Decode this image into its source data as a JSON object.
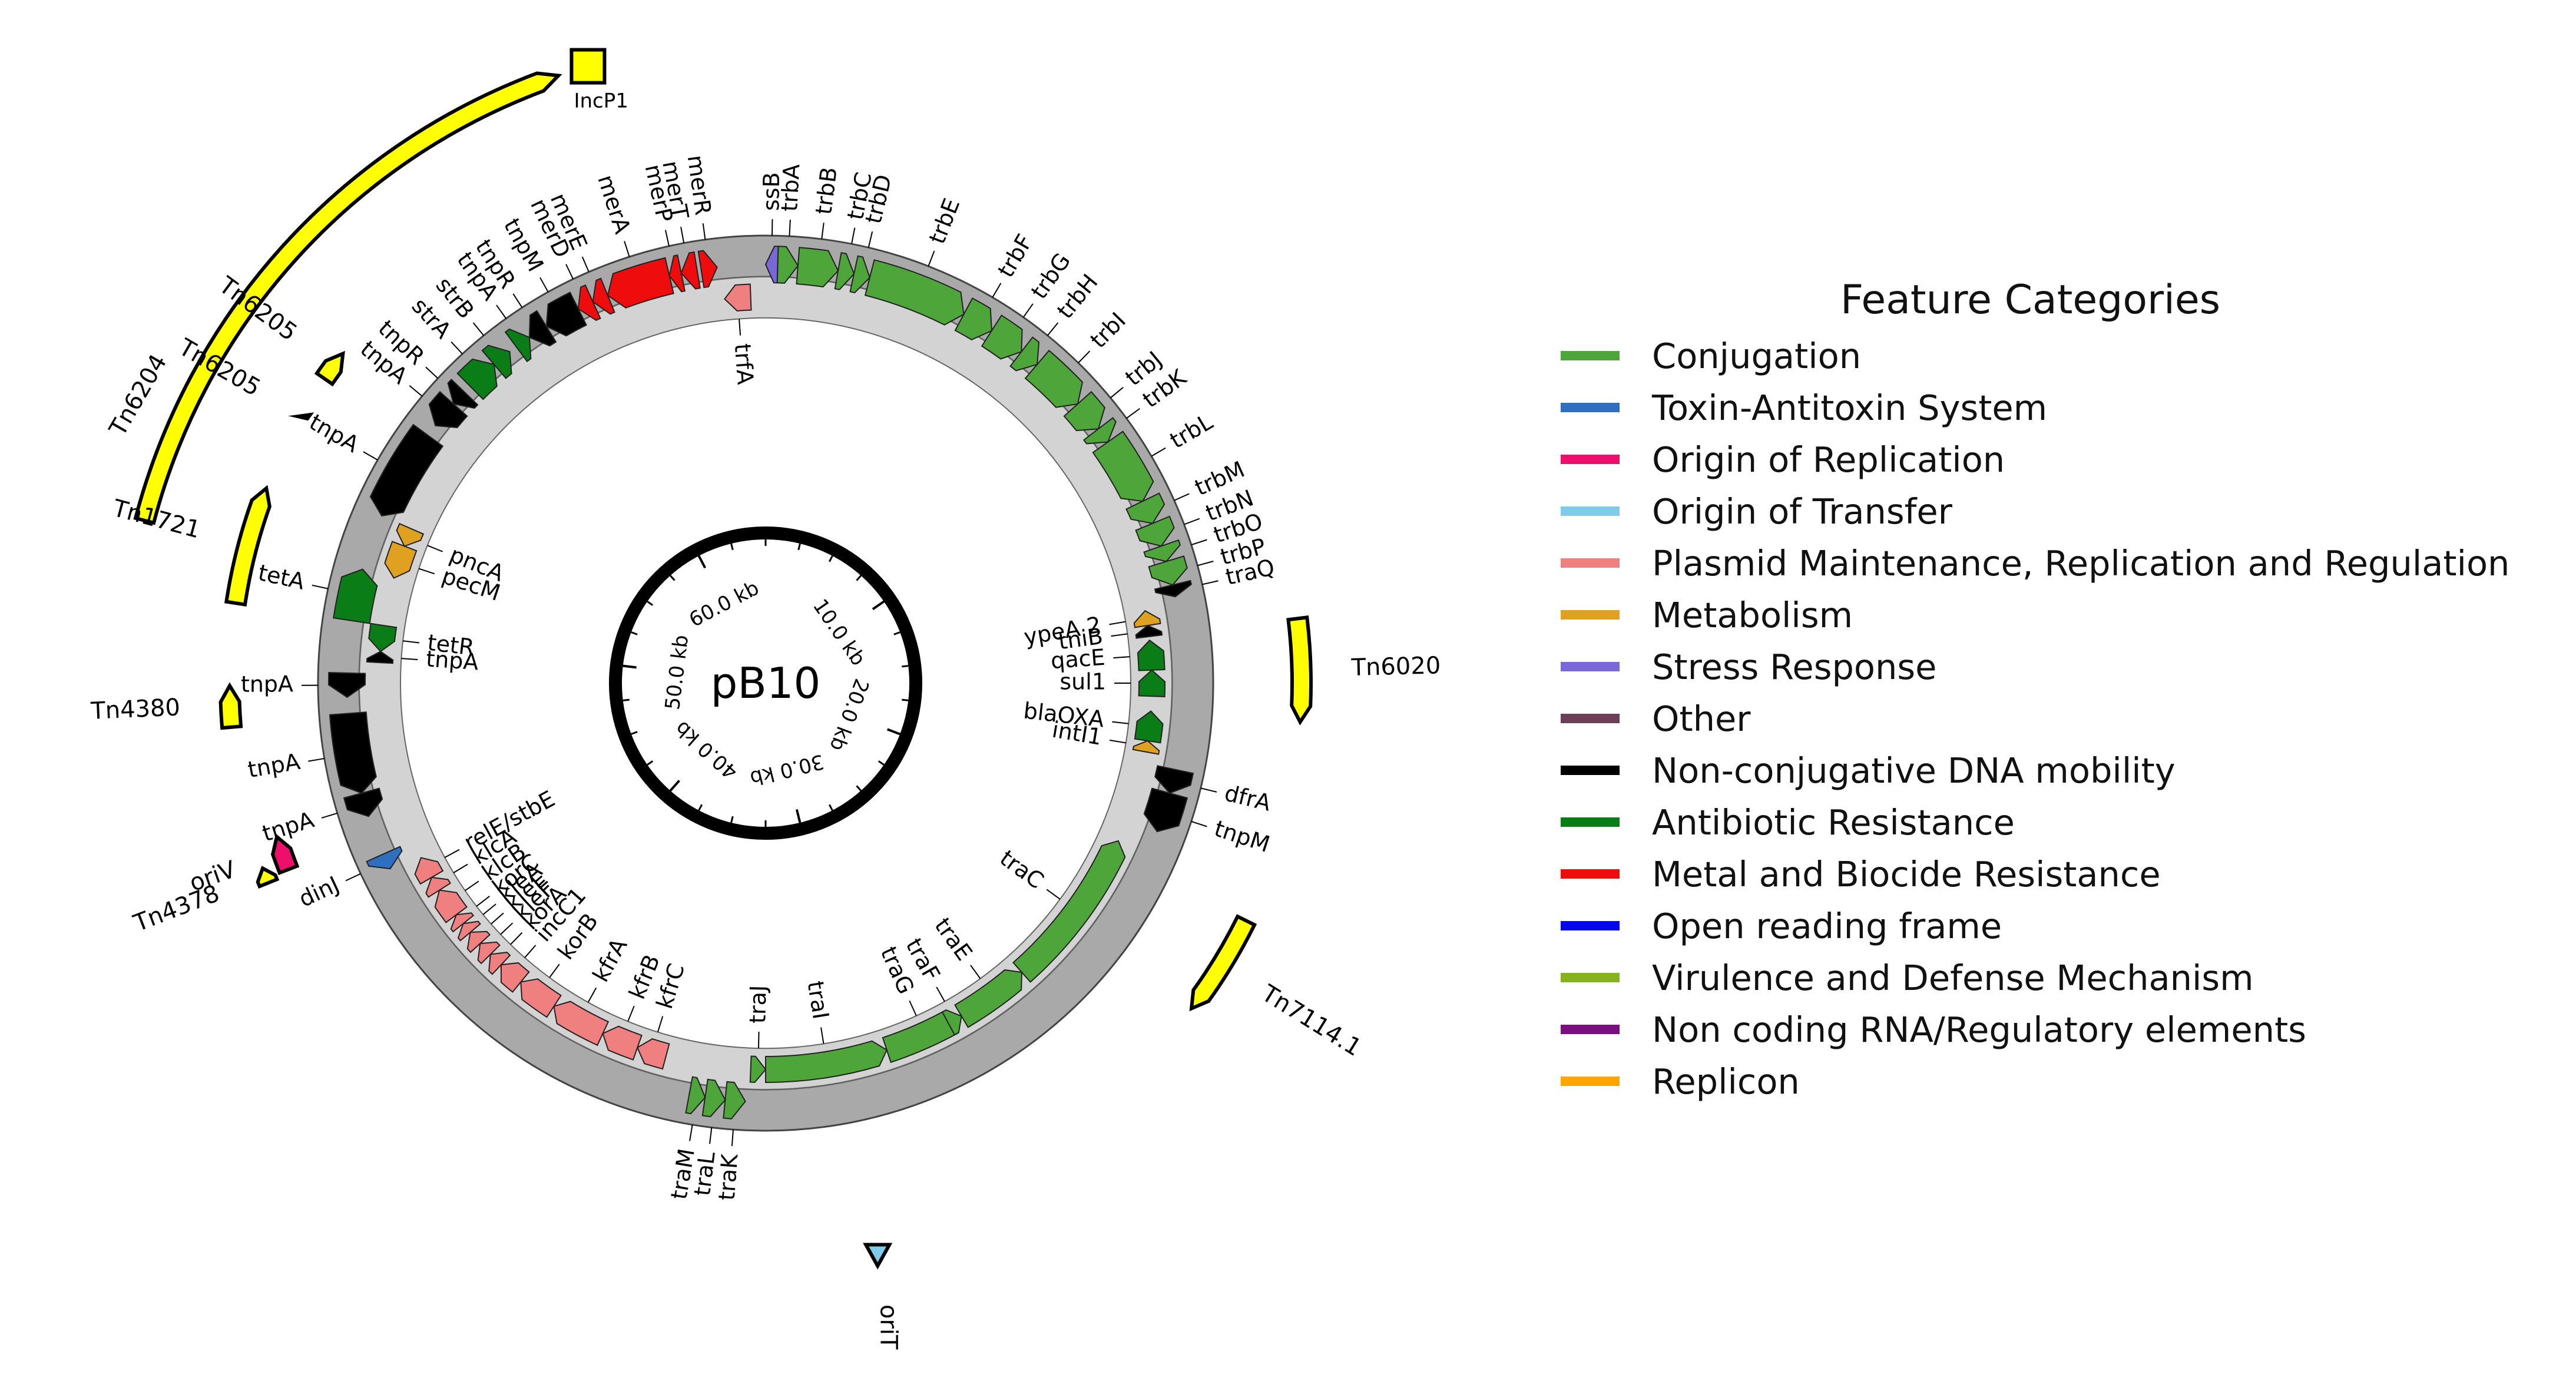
{
  "plasmid": {
    "name": "pB10",
    "scale_labels": [
      "10.0 kb",
      "20.0 kb",
      "30.0 kb",
      "40.0 kb",
      "50.0 kb",
      "60.0 kb"
    ]
  },
  "legend": {
    "title": "Feature Categories",
    "items": [
      {
        "label": "Conjugation",
        "color": "#4ea63b"
      },
      {
        "label": "Toxin-Antitoxin System",
        "color": "#2f6fbf"
      },
      {
        "label": "Origin of Replication",
        "color": "#ee0e6b"
      },
      {
        "label": "Origin of Transfer",
        "color": "#7ecbea"
      },
      {
        "label": "Plasmid Maintenance, Replication and Regulation",
        "color": "#f08080"
      },
      {
        "label": "Metabolism",
        "color": "#e0a020"
      },
      {
        "label": "Stress Response",
        "color": "#7b68d8"
      },
      {
        "label": "Other",
        "color": "#6b3f57"
      },
      {
        "label": "Non-conjugative DNA mobility",
        "color": "#000000"
      },
      {
        "label": "Antibiotic Resistance",
        "color": "#0a7d16"
      },
      {
        "label": "Metal and Biocide Resistance",
        "color": "#ee0c0c"
      },
      {
        "label": "Open reading frame",
        "color": "#0606ee"
      },
      {
        "label": "Virulence and Defense Mechanism",
        "color": "#84b31c"
      },
      {
        "label": "Non coding RNA/Regulatory elements",
        "color": "#7a0f7e"
      },
      {
        "label": "Replicon",
        "color": "#ffa500"
      }
    ]
  },
  "features": [
    {
      "name": "ssB",
      "start": 0.0,
      "end": 0.3,
      "strand": -1,
      "category": "Stress Response",
      "lane": "outer"
    },
    {
      "name": "trbA",
      "start": 0.3,
      "end": 0.8,
      "strand": 1,
      "category": "Conjugation",
      "lane": "outer"
    },
    {
      "name": "trbB",
      "start": 0.8,
      "end": 1.8,
      "strand": 1,
      "category": "Conjugation",
      "lane": "outer"
    },
    {
      "name": "trbC",
      "start": 1.8,
      "end": 2.2,
      "strand": 1,
      "category": "Conjugation",
      "lane": "outer"
    },
    {
      "name": "trbD",
      "start": 2.2,
      "end": 2.6,
      "strand": 1,
      "category": "Conjugation",
      "lane": "outer"
    },
    {
      "name": "trbE",
      "start": 2.6,
      "end": 5.1,
      "strand": 1,
      "category": "Conjugation",
      "lane": "outer"
    },
    {
      "name": "trbF",
      "start": 5.1,
      "end": 5.9,
      "strand": 1,
      "category": "Conjugation",
      "lane": "outer"
    },
    {
      "name": "trbG",
      "start": 5.9,
      "end": 6.8,
      "strand": 1,
      "category": "Conjugation",
      "lane": "outer"
    },
    {
      "name": "trbH",
      "start": 6.8,
      "end": 7.3,
      "strand": 1,
      "category": "Conjugation",
      "lane": "outer"
    },
    {
      "name": "trbI",
      "start": 7.3,
      "end": 8.7,
      "strand": 1,
      "category": "Conjugation",
      "lane": "outer"
    },
    {
      "name": "trbJ",
      "start": 8.7,
      "end": 9.5,
      "strand": 1,
      "category": "Conjugation",
      "lane": "outer"
    },
    {
      "name": "trbK",
      "start": 9.5,
      "end": 9.9,
      "strand": 1,
      "category": "Conjugation",
      "lane": "outer"
    },
    {
      "name": "trbL",
      "start": 9.9,
      "end": 11.6,
      "strand": 1,
      "category": "Conjugation",
      "lane": "outer"
    },
    {
      "name": "trbM",
      "start": 11.6,
      "end": 12.2,
      "strand": 1,
      "category": "Conjugation",
      "lane": "outer"
    },
    {
      "name": "trbN",
      "start": 12.2,
      "end": 12.8,
      "strand": 1,
      "category": "Conjugation",
      "lane": "outer"
    },
    {
      "name": "trbO",
      "start": 12.8,
      "end": 13.2,
      "strand": 1,
      "category": "Conjugation",
      "lane": "outer"
    },
    {
      "name": "trbP",
      "start": 13.2,
      "end": 13.8,
      "strand": 1,
      "category": "Conjugation",
      "lane": "outer"
    },
    {
      "name": "traQ",
      "start": 13.8,
      "end": 14.1,
      "strand": 1,
      "category": "Non-conjugative DNA mobility",
      "lane": "outer"
    },
    {
      "name": "ypeA 2",
      "start": 14.3,
      "end": 14.7,
      "strand": -1,
      "category": "Metabolism",
      "lane": "inner"
    },
    {
      "name": "tniB",
      "start": 14.7,
      "end": 15.0,
      "strand": -1,
      "category": "Non-conjugative DNA mobility",
      "lane": "inner"
    },
    {
      "name": "qacE",
      "start": 15.1,
      "end": 15.9,
      "strand": -1,
      "category": "Antibiotic Resistance",
      "lane": "inner"
    },
    {
      "name": "sul1",
      "start": 15.9,
      "end": 16.6,
      "strand": -1,
      "category": "Antibiotic Resistance",
      "lane": "inner"
    },
    {
      "name": "blaOXA",
      "start": 17.0,
      "end": 17.8,
      "strand": -1,
      "category": "Antibiotic Resistance",
      "lane": "inner"
    },
    {
      "name": "intI1",
      "start": 17.8,
      "end": 18.1,
      "strand": -1,
      "category": "Metabolism",
      "lane": "inner"
    },
    {
      "name": "dfrA",
      "start": 18.4,
      "end": 19.0,
      "strand": 1,
      "category": "Non-conjugative DNA mobility",
      "lane": "outer"
    },
    {
      "name": "tnpM",
      "start": 19.0,
      "end": 20.0,
      "strand": 1,
      "category": "Non-conjugative DNA mobility",
      "lane": "outer"
    },
    {
      "name": "traC",
      "start": 20.6,
      "end": 25.0,
      "strand": -1,
      "category": "Conjugation",
      "lane": "inner"
    },
    {
      "name": "traE",
      "start": 25.0,
      "end": 27.0,
      "strand": -1,
      "category": "Conjugation",
      "lane": "inner"
    },
    {
      "name": "traG",
      "start": 27.0,
      "end": 29.2,
      "strand": -1,
      "category": "Conjugation",
      "lane": "inner"
    },
    {
      "name": "traF",
      "start": 27.0,
      "end": 27.4,
      "strand": -1,
      "category": "Conjugation",
      "lane": "inner"
    },
    {
      "name": "traI",
      "start": 29.2,
      "end": 32.5,
      "strand": -1,
      "category": "Conjugation",
      "lane": "inner"
    },
    {
      "name": "traJ",
      "start": 32.5,
      "end": 32.9,
      "strand": -1,
      "category": "Conjugation",
      "lane": "inner"
    },
    {
      "name": "traK",
      "start": 33.0,
      "end": 33.5,
      "strand": -1,
      "category": "Conjugation",
      "lane": "outer"
    },
    {
      "name": "traL",
      "start": 33.5,
      "end": 34.0,
      "strand": -1,
      "category": "Conjugation",
      "lane": "outer"
    },
    {
      "name": "traM",
      "start": 34.0,
      "end": 34.4,
      "strand": -1,
      "category": "Conjugation",
      "lane": "outer"
    },
    {
      "name": "kfrC",
      "start": 35.2,
      "end": 36.0,
      "strand": 1,
      "category": "Plasmid Maintenance, Replication and Regulation",
      "lane": "inner"
    },
    {
      "name": "kfrB",
      "start": 36.0,
      "end": 37.0,
      "strand": 1,
      "category": "Plasmid Maintenance, Replication and Regulation",
      "lane": "inner"
    },
    {
      "name": "kfrA",
      "start": 37.0,
      "end": 38.5,
      "strand": 1,
      "category": "Plasmid Maintenance, Replication and Regulation",
      "lane": "inner"
    },
    {
      "name": "korB",
      "start": 38.5,
      "end": 39.6,
      "strand": 1,
      "category": "Plasmid Maintenance, Replication and Regulation",
      "lane": "inner"
    },
    {
      "name": "incC1",
      "start": 39.6,
      "end": 40.3,
      "strand": 1,
      "category": "Plasmid Maintenance, Replication and Regulation",
      "lane": "inner"
    },
    {
      "name": "korA",
      "start": 40.3,
      "end": 40.7,
      "strand": 1,
      "category": "Plasmid Maintenance, Replication and Regulation",
      "lane": "inner"
    },
    {
      "name": "kleF",
      "start": 40.7,
      "end": 41.1,
      "strand": 1,
      "category": "Plasmid Maintenance, Replication and Regulation",
      "lane": "inner"
    },
    {
      "name": "kleE",
      "start": 41.1,
      "end": 41.5,
      "strand": 1,
      "category": "Plasmid Maintenance, Replication and Regulation",
      "lane": "inner"
    },
    {
      "name": "kleA",
      "start": 41.5,
      "end": 41.8,
      "strand": 1,
      "category": "Plasmid Maintenance, Replication and Regulation",
      "lane": "inner"
    },
    {
      "name": "korC",
      "start": 41.8,
      "end": 42.1,
      "strand": 1,
      "category": "Plasmid Maintenance, Replication and Regulation",
      "lane": "inner"
    },
    {
      "name": "klcB",
      "start": 42.1,
      "end": 42.9,
      "strand": 1,
      "category": "Plasmid Maintenance, Replication and Regulation",
      "lane": "inner"
    },
    {
      "name": "klcA",
      "start": 42.9,
      "end": 43.3,
      "strand": 1,
      "category": "Plasmid Maintenance, Replication and Regulation",
      "lane": "inner"
    },
    {
      "name": "relE/stbE",
      "start": 43.3,
      "end": 43.9,
      "strand": 1,
      "category": "Plasmid Maintenance, Replication and Regulation",
      "lane": "inner"
    },
    {
      "name": "dinJ",
      "start": 44.0,
      "end": 44.4,
      "strand": -1,
      "category": "Toxin-Antitoxin System",
      "lane": "outer"
    },
    {
      "name": "tnpA",
      "start": 45.4,
      "end": 46.0,
      "strand": -1,
      "category": "Non-conjugative DNA mobility",
      "lane": "outer"
    },
    {
      "name": "tnpA",
      "start": 46.0,
      "end": 48.0,
      "strand": -1,
      "category": "Non-conjugative DNA mobility",
      "lane": "outer"
    },
    {
      "name": "tnpA",
      "start": 48.4,
      "end": 49.0,
      "strand": -1,
      "category": "Non-conjugative DNA mobility",
      "lane": "outer"
    },
    {
      "name": "tnpA",
      "start": 49.3,
      "end": 49.6,
      "strand": 1,
      "category": "Non-conjugative DNA mobility",
      "lane": "inner"
    },
    {
      "name": "tetR",
      "start": 49.6,
      "end": 50.3,
      "strand": -1,
      "category": "Antibiotic Resistance",
      "lane": "inner"
    },
    {
      "name": "tetA",
      "start": 50.3,
      "end": 51.6,
      "strand": 1,
      "category": "Antibiotic Resistance",
      "lane": "outer"
    },
    {
      "name": "pecM",
      "start": 51.6,
      "end": 52.5,
      "strand": -1,
      "category": "Metabolism",
      "lane": "inner"
    },
    {
      "name": "pncA",
      "start": 52.5,
      "end": 53.0,
      "strand": -1,
      "category": "Metabolism",
      "lane": "inner"
    },
    {
      "name": "tnpA",
      "start": 53.0,
      "end": 55.3,
      "strand": -1,
      "category": "Non-conjugative DNA mobility",
      "lane": "outer"
    },
    {
      "name": "tnpA",
      "start": 55.6,
      "end": 56.3,
      "strand": -1,
      "category": "Non-conjugative DNA mobility",
      "lane": "outer"
    },
    {
      "name": "tnpR",
      "start": 56.3,
      "end": 56.7,
      "strand": -1,
      "category": "Non-conjugative DNA mobility",
      "lane": "outer"
    },
    {
      "name": "strA",
      "start": 56.9,
      "end": 57.7,
      "strand": 1,
      "category": "Antibiotic Resistance",
      "lane": "outer"
    },
    {
      "name": "strB",
      "start": 57.7,
      "end": 58.2,
      "strand": 1,
      "category": "Antibiotic Resistance",
      "lane": "outer"
    },
    {
      "name": "tnpA",
      "start": 58.4,
      "end": 58.8,
      "strand": 1,
      "category": "Antibiotic Resistance",
      "lane": "outer"
    },
    {
      "name": "tnpR",
      "start": 58.8,
      "end": 59.3,
      "strand": -1,
      "category": "Non-conjugative DNA mobility",
      "lane": "outer"
    },
    {
      "name": "tnpM",
      "start": 59.3,
      "end": 60.2,
      "strand": -1,
      "category": "Non-conjugative DNA mobility",
      "lane": "outer"
    },
    {
      "name": "merD",
      "start": 60.2,
      "end": 60.6,
      "strand": -1,
      "category": "Metal and Biocide Resistance",
      "lane": "outer"
    },
    {
      "name": "merE",
      "start": 60.6,
      "end": 61.0,
      "strand": -1,
      "category": "Metal and Biocide Resistance",
      "lane": "outer"
    },
    {
      "name": "merA",
      "start": 61.0,
      "end": 62.6,
      "strand": -1,
      "category": "Metal and Biocide Resistance",
      "lane": "outer"
    },
    {
      "name": "merP",
      "start": 62.6,
      "end": 62.9,
      "strand": -1,
      "category": "Metal and Biocide Resistance",
      "lane": "outer"
    },
    {
      "name": "merT",
      "start": 62.9,
      "end": 63.3,
      "strand": -1,
      "category": "Metal and Biocide Resistance",
      "lane": "outer"
    },
    {
      "name": "merR",
      "start": 63.4,
      "end": 63.8,
      "strand": 1,
      "category": "Metal and Biocide Resistance",
      "lane": "outer"
    },
    {
      "name": "trfA",
      "start": 63.9,
      "end": 64.6,
      "strand": -1,
      "category": "Plasmid Maintenance, Replication and Regulation",
      "lane": "inner"
    }
  ],
  "outer_annotations": [
    {
      "name": "Tn6204",
      "start": 51.4,
      "end": 61.6,
      "strand": 1,
      "shape": "arc-arrow",
      "color": "#ffff00"
    },
    {
      "name": "IncP1",
      "start": 61.9,
      "end": 62.3,
      "strand": 0,
      "shape": "box",
      "color": "#ffff00"
    },
    {
      "name": "Tn6205",
      "start": 55.0,
      "end": 55.6,
      "strand": 1,
      "shape": "arc-arrow",
      "color": "#ffff00"
    },
    {
      "name": "Tn6205",
      "start": 54.0,
      "end": 54.3,
      "strand": 1,
      "shape": "tick",
      "color": "#000000"
    },
    {
      "name": "Tn1721",
      "start": 50.3,
      "end": 52.6,
      "strand": 1,
      "shape": "arc-arrow",
      "color": "#ffff00"
    },
    {
      "name": "Tn4380",
      "start": 47.9,
      "end": 48.7,
      "strand": 1,
      "shape": "arc-arrow",
      "color": "#ffff00"
    },
    {
      "name": "Tn4378",
      "start": 44.8,
      "end": 45.1,
      "strand": 1,
      "shape": "arc-arrow",
      "color": "#ffff00"
    },
    {
      "name": "oriV",
      "start": 44.9,
      "end": 45.6,
      "strand": 1,
      "shape": "arc-arrow",
      "color": "#ee0e6b"
    },
    {
      "name": "Tn6020",
      "start": 15.0,
      "end": 17.0,
      "strand": 1,
      "shape": "arc-arrow",
      "color": "#ffff00"
    },
    {
      "name": "Tn7114.1",
      "start": 21.0,
      "end": 23.0,
      "strand": 1,
      "shape": "arc-arrow",
      "color": "#ffff00"
    },
    {
      "name": "oriT",
      "start": 30.3,
      "end": 30.7,
      "strand": 0,
      "shape": "triangle",
      "color": "#7ecbea"
    }
  ]
}
